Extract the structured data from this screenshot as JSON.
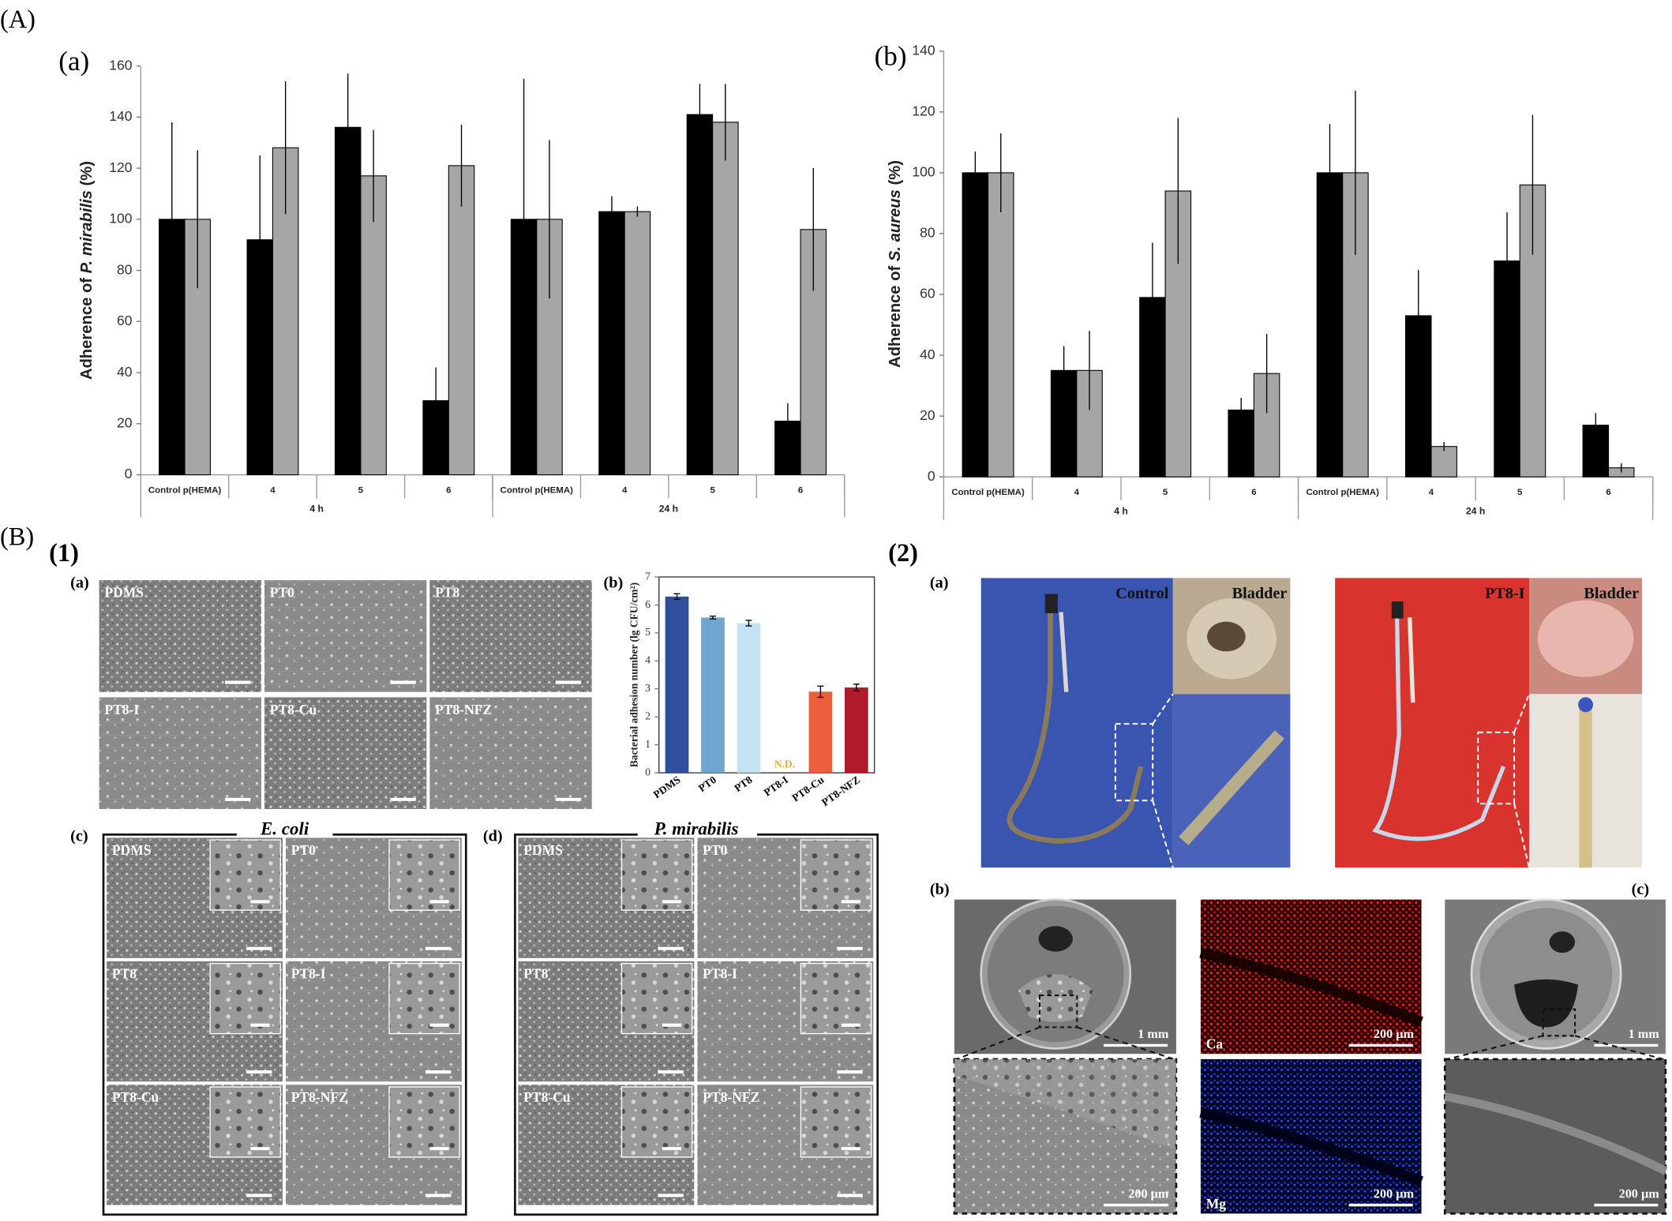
{
  "figure_labels": {
    "A": "(A)",
    "B": "(B)"
  },
  "chart_data": [
    {
      "type": "bar",
      "title": "(a)",
      "y_label": [
        "Adherence of ",
        "P. mirabilis",
        " (%)"
      ],
      "categories": [
        "Control p(HEMA)",
        "4",
        "5",
        "6",
        "Control p(HEMA)",
        "4",
        "5",
        "6"
      ],
      "groups": [
        "4 h",
        "24 h"
      ],
      "series": [
        {
          "color": "#000000",
          "values": [
            100,
            92,
            136,
            29,
            100,
            103,
            141,
            21
          ],
          "errors": [
            38,
            33,
            21,
            13,
            55,
            6,
            12,
            7
          ]
        },
        {
          "color": "#a6a6a6",
          "values": [
            100,
            128,
            117,
            121,
            100,
            103,
            138,
            96
          ],
          "errors": [
            27,
            26,
            18,
            16,
            31,
            2,
            15,
            24
          ]
        }
      ],
      "ylim": [
        0,
        160
      ],
      "yticks": [
        0,
        20,
        40,
        60,
        80,
        100,
        120,
        140,
        160
      ]
    },
    {
      "type": "bar",
      "title": "(b)",
      "y_label": [
        "Adherence of ",
        "S. aureus",
        " (%)"
      ],
      "categories": [
        "Control p(HEMA)",
        "4",
        "5",
        "6",
        "Control p(HEMA)",
        "4",
        "5",
        "6"
      ],
      "groups": [
        "4 h",
        "24 h"
      ],
      "series": [
        {
          "color": "#000000",
          "values": [
            100,
            35,
            59,
            22,
            100,
            53,
            71,
            17
          ],
          "errors": [
            7,
            8,
            18,
            4,
            16,
            15,
            16,
            4
          ]
        },
        {
          "color": "#a6a6a6",
          "values": [
            100,
            35,
            94,
            34,
            100,
            10,
            96,
            3
          ],
          "errors": [
            13,
            13,
            24,
            13,
            27,
            1.5,
            23,
            1.5
          ]
        }
      ],
      "ylim": [
        0,
        140
      ],
      "yticks": [
        0,
        20,
        40,
        60,
        80,
        100,
        120,
        140
      ]
    },
    {
      "type": "bar",
      "title": "(b)",
      "y_label": [
        "Bacterial adhesion number (lg CFU/cm²)"
      ],
      "categories": [
        "PDMS",
        "PT0",
        "PT8",
        "PT8-I",
        "PT8-Cu",
        "PT8-NFZ"
      ],
      "series": [
        {
          "colors": [
            "#2f4f9f",
            "#6ea6cf",
            "#c4e3f2",
            null,
            "#e8603c",
            "#b01a2a"
          ],
          "values": [
            6.3,
            5.55,
            5.35,
            null,
            2.9,
            3.05
          ],
          "errors": [
            0.1,
            0.05,
            0.1,
            null,
            0.2,
            0.12
          ]
        }
      ],
      "annotations": [
        {
          "text": "N.D.",
          "category": "PT8-I",
          "color": "#e8a83c"
        }
      ],
      "ylim": [
        0,
        7
      ],
      "yticks": [
        0,
        1,
        2,
        3,
        4,
        5,
        6,
        7
      ]
    }
  ],
  "panel_B1": {
    "label": "(1)",
    "a": {
      "label": "(a)",
      "tiles": [
        "PDMS",
        "PT0",
        "PT8",
        "PT8-I",
        "PT8-Cu",
        "PT8-NFZ"
      ]
    },
    "c": {
      "label": "(c)",
      "title": "E. coli",
      "tiles": [
        "PDMS",
        "PT0",
        "PT8",
        "PT8-I",
        "PT8-Cu",
        "PT8-NFZ"
      ]
    },
    "d": {
      "label": "(d)",
      "title": "P. mirabilis",
      "tiles": [
        "PDMS",
        "PT0",
        "PT8",
        "PT8-I",
        "PT8-Cu",
        "PT8-NFZ"
      ]
    }
  },
  "panel_B2": {
    "label": "(2)",
    "a": {
      "label": "(a)",
      "control": {
        "label": "Control",
        "inset": "Bladder"
      },
      "treated": {
        "label": "PT8-I",
        "inset": "Bladder"
      }
    },
    "b": {
      "label": "(b)",
      "sem_scale": "1 mm",
      "zoom_scale": "200 µm",
      "ca": {
        "label": "Ca",
        "scale": "200 µm"
      },
      "mg": {
        "label": "Mg",
        "scale": "200 µm"
      }
    },
    "c": {
      "label": "(c)",
      "sem_scale": "1 mm",
      "zoom_scale": "200 µm"
    }
  }
}
